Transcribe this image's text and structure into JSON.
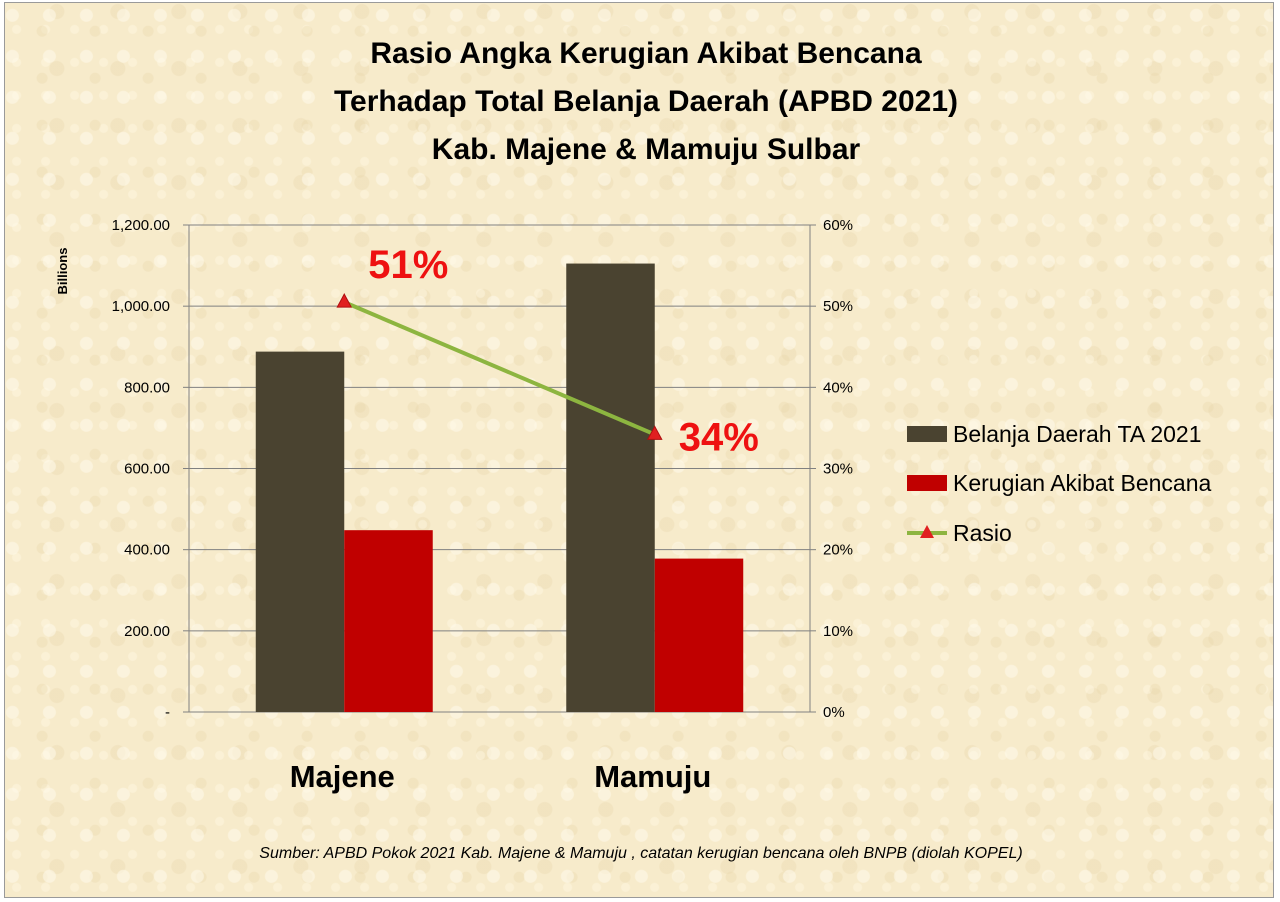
{
  "chart_data": {
    "type": "bar",
    "title_lines": [
      "Rasio Angka Kerugian Akibat Bencana",
      "Terhadap Total Belanja Daerah (APBD 2021)",
      "Kab. Majene & Mamuju Sulbar"
    ],
    "categories": [
      "Majene",
      "Mamuju"
    ],
    "series": [
      {
        "name": "Belanja Daerah TA 2021",
        "kind": "bar",
        "axis": "left",
        "color": "#4a4330",
        "values": [
          888,
          1105
        ]
      },
      {
        "name": "Kerugian Akibat Bencana",
        "kind": "bar",
        "axis": "left",
        "color": "#c00000",
        "values": [
          448,
          378
        ]
      },
      {
        "name": "Rasio",
        "kind": "line",
        "axis": "right",
        "color": "#8db540",
        "marker_color": "#e02020",
        "values": [
          0.505,
          0.342
        ]
      }
    ],
    "ratio_labels": [
      "51%",
      "34%"
    ],
    "ylabel_left": "Billions",
    "ylim_left": [
      0,
      1200
    ],
    "yticks_left": [
      "-",
      "200.00",
      "400.00",
      "600.00",
      "800.00",
      "1,000.00",
      "1,200.00"
    ],
    "ylim_right": [
      0,
      0.6
    ],
    "yticks_right": [
      "0%",
      "10%",
      "20%",
      "30%",
      "40%",
      "50%",
      "60%"
    ],
    "grid": true,
    "legend_position": "right",
    "source": "Sumber: APBD Pokok 2021 Kab. Majene & Mamuju ,  catatan kerugian bencana oleh BNPB (diolah KOPEL)"
  }
}
